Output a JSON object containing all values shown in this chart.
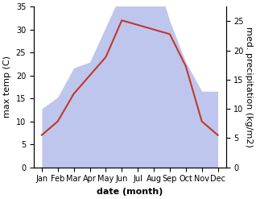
{
  "months": [
    "Jan",
    "Feb",
    "Mar",
    "Apr",
    "May",
    "Jun",
    "Jul",
    "Aug",
    "Sep",
    "Oct",
    "Nov",
    "Dec"
  ],
  "temperature": [
    7,
    10,
    16,
    20,
    24,
    32,
    31,
    30,
    29,
    22,
    10,
    7
  ],
  "precipitation": [
    10,
    12,
    17,
    18,
    24,
    30,
    34,
    34,
    25,
    18,
    13,
    13
  ],
  "temp_color": "#c0392b",
  "precip_color": "#aab4e8",
  "temp_ylim": [
    0,
    35
  ],
  "precip_ylim": [
    0,
    27.5
  ],
  "temp_yticks": [
    0,
    5,
    10,
    15,
    20,
    25,
    30,
    35
  ],
  "precip_yticks": [
    0,
    5,
    10,
    15,
    20,
    25
  ],
  "ylabel_left": "max temp (C)",
  "ylabel_right": "med. precipitation (kg/m2)",
  "xlabel": "date (month)",
  "label_fontsize": 8,
  "tick_fontsize": 7,
  "background_color": "#ffffff"
}
